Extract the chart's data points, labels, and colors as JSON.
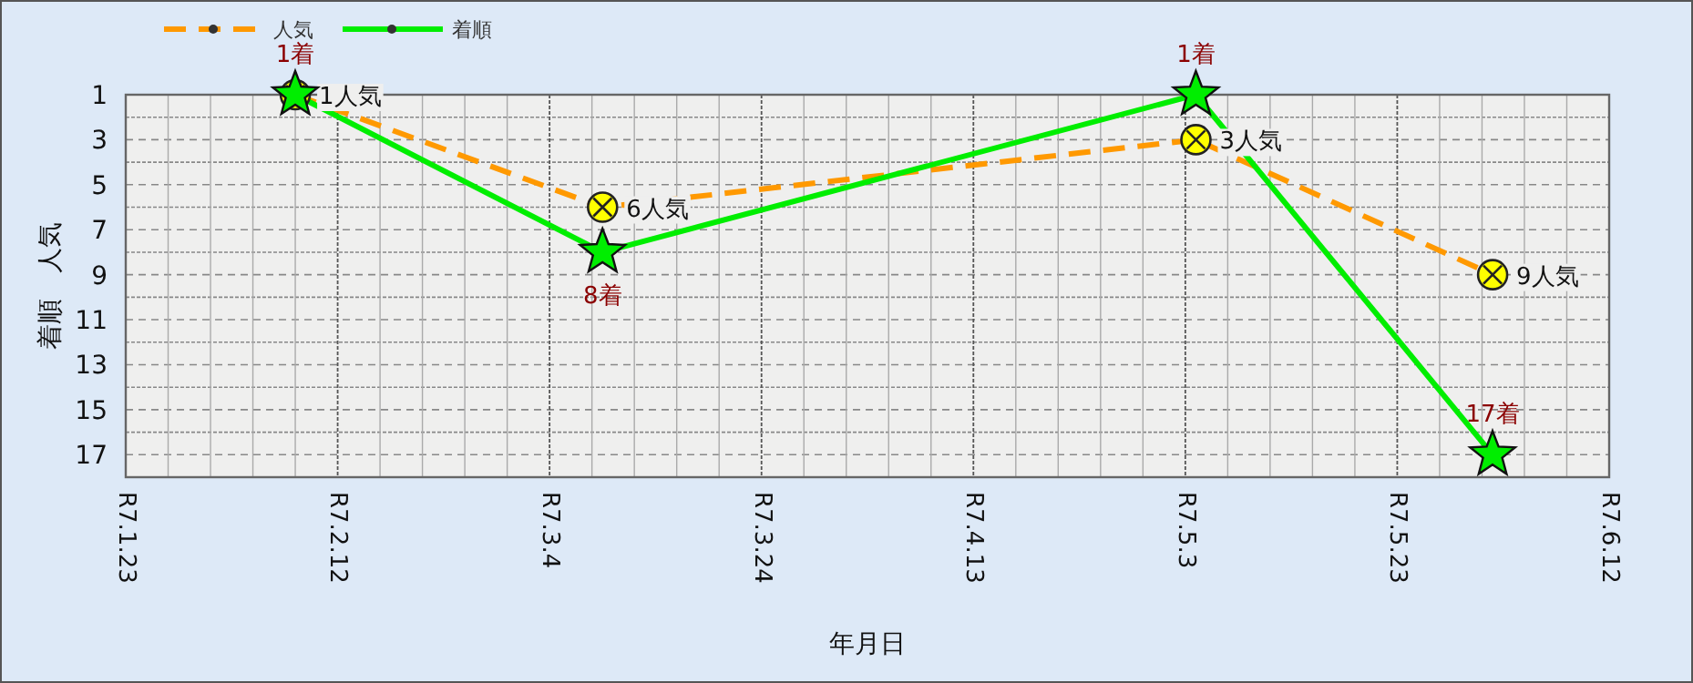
{
  "chart_data": {
    "type": "line",
    "xlabel": "年月日",
    "ylabel": "着順　人気",
    "x": [
      "--02-08",
      "--03-09",
      "--05-04",
      "--06-01"
    ],
    "series": [
      {
        "name": "人気",
        "color": "#ff9900",
        "line_style": "dashed",
        "marker": "circle",
        "values": [
          1,
          6,
          3,
          9
        ],
        "value_labels": [
          "1人気",
          "6人気",
          "3人気",
          "9人気"
        ]
      },
      {
        "name": "着順",
        "color": "#00ee00",
        "line_style": "solid",
        "marker": "star",
        "values": [
          1,
          8,
          1,
          17
        ],
        "value_labels": [
          "1着",
          "8着",
          "1着",
          "17着"
        ]
      }
    ],
    "xlim": [
      "--01-23",
      "--06-12"
    ],
    "xticks": [
      {
        "value": "--01-23",
        "label": "R7.1.23"
      },
      {
        "value": "--02-12",
        "label": "R7.2.12"
      },
      {
        "value": "--03-04",
        "label": "R7.3.4"
      },
      {
        "value": "--03-24",
        "label": "R7.3.24"
      },
      {
        "value": "--04-13",
        "label": "R7.4.13"
      },
      {
        "value": "--05-03",
        "label": "R7.5.3"
      },
      {
        "value": "--05-23",
        "label": "R7.5.23"
      },
      {
        "value": "--06-12",
        "label": "R7.6.12"
      }
    ],
    "ylim": [
      18,
      1
    ],
    "yticks": [
      1,
      3,
      5,
      7,
      9,
      11,
      13,
      15,
      17
    ],
    "grid": true,
    "legend": "top left"
  }
}
